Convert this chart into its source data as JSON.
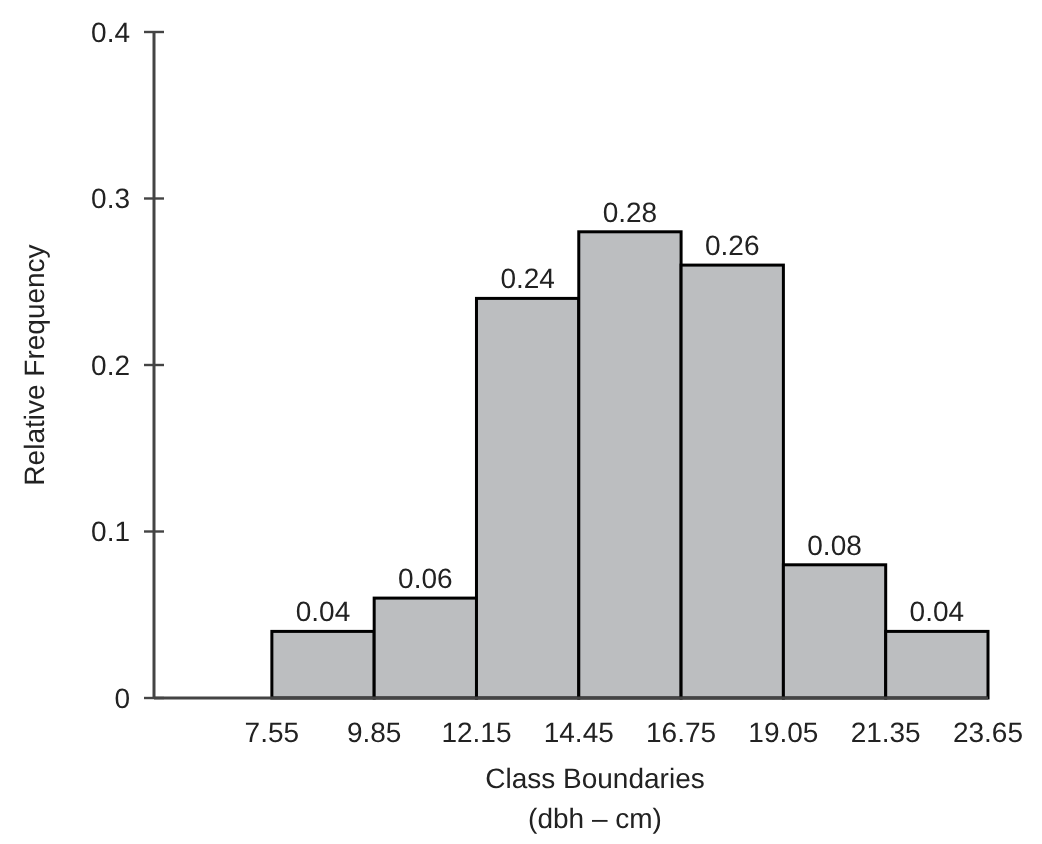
{
  "chart_data": {
    "type": "histogram",
    "xlabel": "Class Boundaries\n(dbh – cm)",
    "ylabel": "Relative Frequency",
    "bins": [
      7.55,
      9.85,
      12.15,
      14.45,
      16.75,
      19.05,
      21.35,
      23.65
    ],
    "values": [
      0.04,
      0.06,
      0.24,
      0.28,
      0.26,
      0.08,
      0.04
    ],
    "color": "#bcbec0",
    "data_labels": true,
    "xlim": [
      4.9,
      23.65
    ],
    "xticks": [
      7.55,
      9.85,
      12.15,
      14.45,
      16.75,
      19.05,
      21.35,
      23.65
    ],
    "ylim": [
      0,
      0.4
    ],
    "yticks": [
      0,
      0.1,
      0.2,
      0.3,
      0.4
    ]
  }
}
